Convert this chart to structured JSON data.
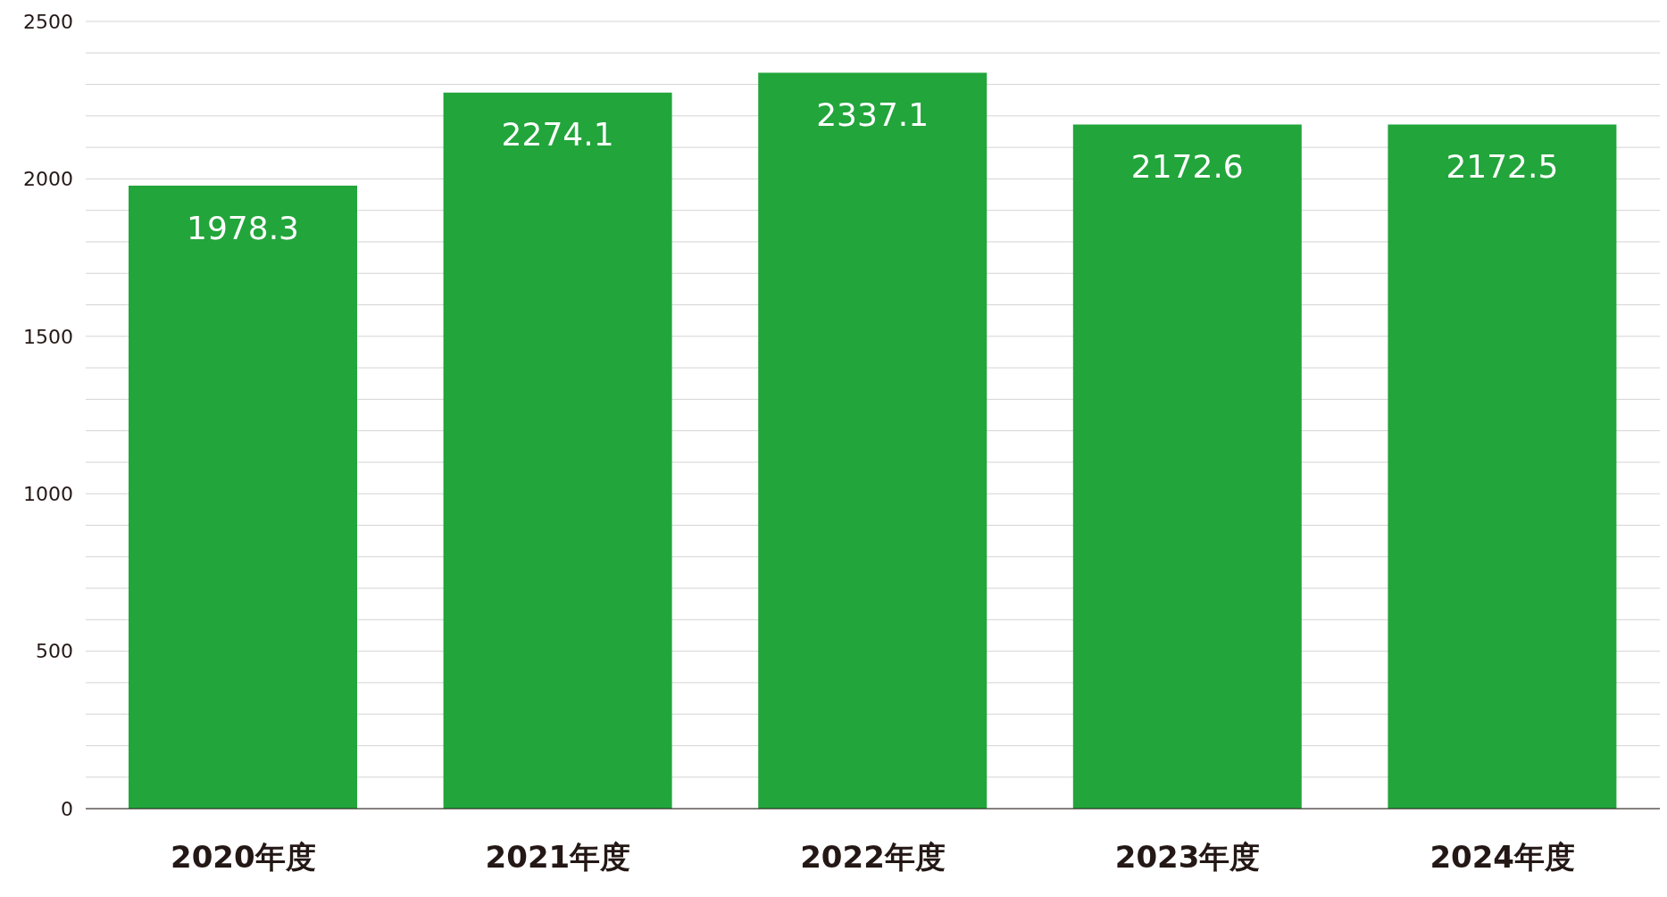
{
  "chart_data": {
    "type": "bar",
    "categories": [
      "2020年度",
      "2021年度",
      "2022年度",
      "2023年度",
      "2024年度"
    ],
    "values": [
      1978.3,
      2274.1,
      2337.1,
      2172.6,
      2172.5
    ],
    "color": "#22a53b",
    "data_labels": true,
    "ylim": [
      0,
      2500
    ],
    "yticks": [
      0,
      {
        "value": 100,
        "label": null
      },
      {
        "value": 200,
        "label": null
      },
      {
        "value": 300,
        "label": null
      },
      {
        "value": 400,
        "label": null
      },
      500,
      {
        "value": 600,
        "label": null
      },
      {
        "value": 700,
        "label": null
      },
      {
        "value": 800,
        "label": null
      },
      {
        "value": 900,
        "label": null
      },
      1000,
      {
        "value": 1100,
        "label": null
      },
      {
        "value": 1200,
        "label": null
      },
      {
        "value": 1300,
        "label": null
      },
      {
        "value": 1400,
        "label": null
      },
      1500,
      {
        "value": 1600,
        "label": null
      },
      {
        "value": 1700,
        "label": null
      },
      {
        "value": 1800,
        "label": null
      },
      {
        "value": 1900,
        "label": null
      },
      2000,
      {
        "value": 2100,
        "label": null
      },
      {
        "value": 2200,
        "label": null
      },
      {
        "value": 2300,
        "label": null
      },
      {
        "value": 2400,
        "label": null
      },
      2500
    ],
    "grid": "y"
  }
}
